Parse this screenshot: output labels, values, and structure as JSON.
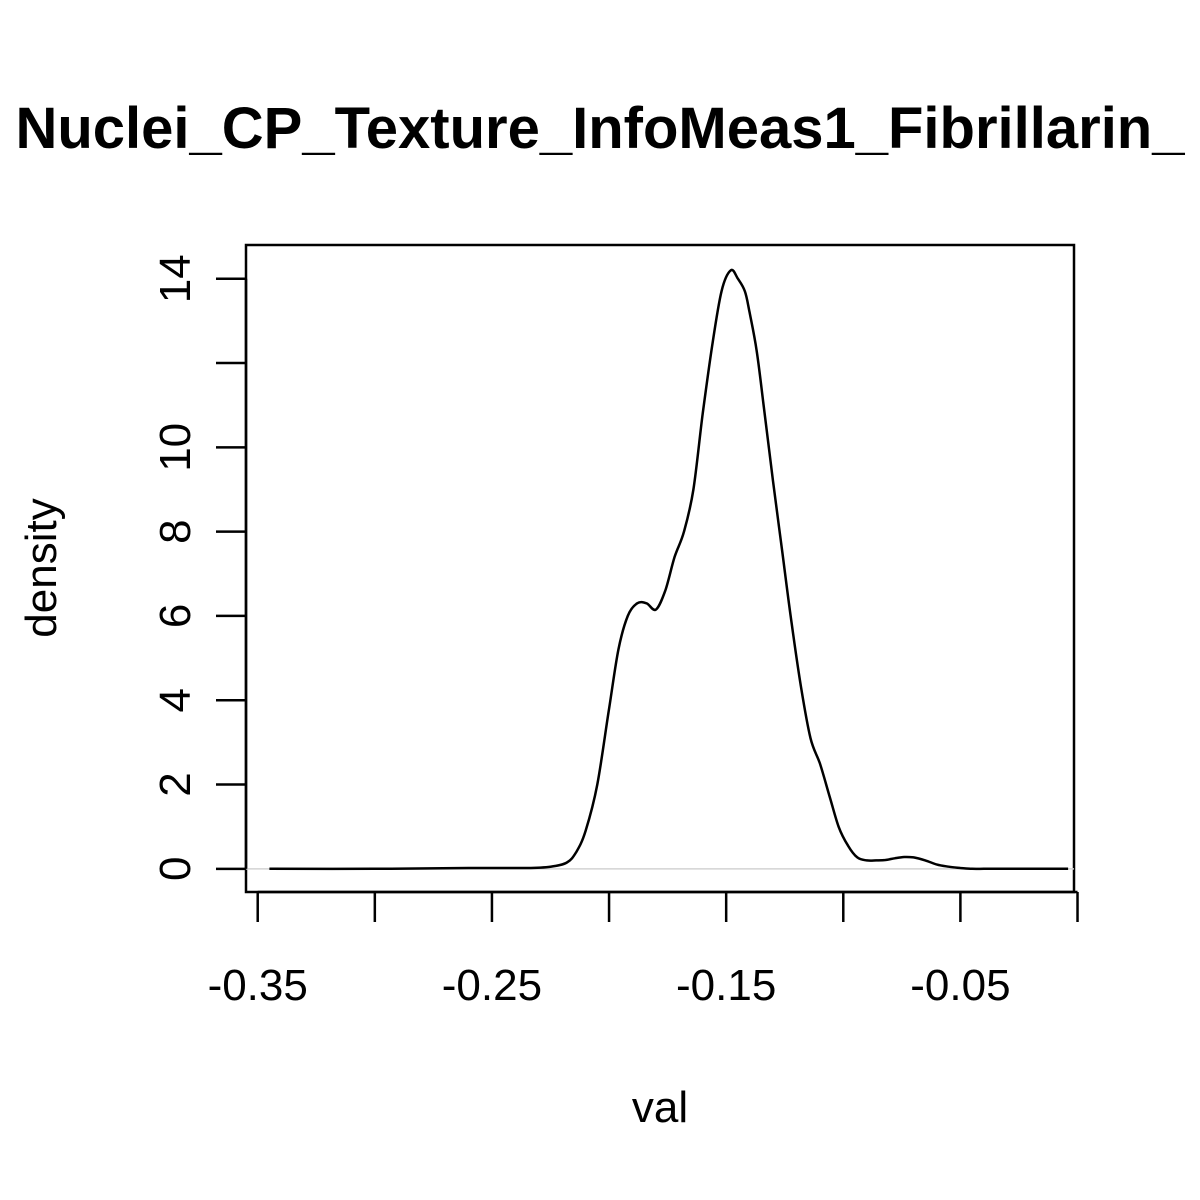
{
  "chart_data": {
    "type": "line",
    "title": "Nuclei_CP_Texture_InfoMeas1_Fibrillarin_",
    "xlabel": "val",
    "ylabel": "density",
    "xlim": [
      -0.355,
      -0.0015
    ],
    "ylim": [
      -0.55,
      14.8
    ],
    "x_ticks": [
      -0.35,
      -0.3,
      -0.25,
      -0.2,
      -0.15,
      -0.1,
      -0.05,
      0.0
    ],
    "x_tick_labels": [
      "-0.35",
      "",
      "-0.25",
      "",
      "-0.15",
      "",
      "-0.05",
      ""
    ],
    "y_ticks": [
      0,
      2,
      4,
      6,
      8,
      10,
      12,
      14
    ],
    "y_tick_labels": [
      "0",
      "2",
      "4",
      "6",
      "8",
      "10",
      "",
      "14"
    ],
    "baseline": 0,
    "grid": false,
    "series": [
      {
        "color": "#000000",
        "x": [
          -0.345,
          -0.3,
          -0.26,
          -0.235,
          -0.225,
          -0.218,
          -0.214,
          -0.21,
          -0.205,
          -0.2,
          -0.196,
          -0.192,
          -0.188,
          -0.184,
          -0.18,
          -0.176,
          -0.172,
          -0.168,
          -0.164,
          -0.16,
          -0.156,
          -0.152,
          -0.148,
          -0.145,
          -0.142,
          -0.14,
          -0.137,
          -0.134,
          -0.13,
          -0.126,
          -0.122,
          -0.118,
          -0.114,
          -0.11,
          -0.106,
          -0.102,
          -0.098,
          -0.094,
          -0.09,
          -0.086,
          -0.082,
          -0.078,
          -0.074,
          -0.07,
          -0.065,
          -0.06,
          -0.055,
          -0.05,
          -0.045,
          -0.04,
          -0.035,
          -0.03,
          -0.025,
          -0.02,
          -0.01,
          -0.004
        ],
        "y": [
          0.0,
          0.0,
          0.02,
          0.02,
          0.05,
          0.15,
          0.4,
          0.9,
          2.0,
          3.8,
          5.2,
          6.0,
          6.3,
          6.3,
          6.15,
          6.6,
          7.4,
          8.0,
          9.0,
          10.8,
          12.4,
          13.7,
          14.2,
          14.0,
          13.7,
          13.2,
          12.3,
          11.0,
          9.2,
          7.5,
          5.8,
          4.3,
          3.1,
          2.5,
          1.75,
          1.0,
          0.55,
          0.27,
          0.2,
          0.2,
          0.21,
          0.25,
          0.28,
          0.27,
          0.2,
          0.1,
          0.05,
          0.02,
          0.0,
          0.0,
          0.0,
          0.0,
          0.0,
          0.0,
          0.0,
          0.0
        ]
      }
    ]
  }
}
